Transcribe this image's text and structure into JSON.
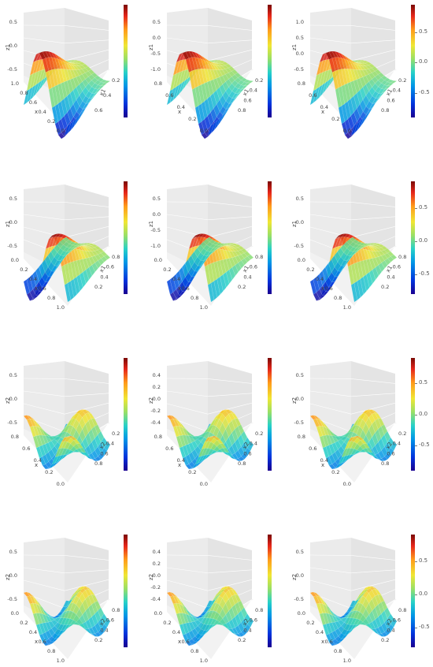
{
  "chart_data": [
    {
      "type": "surface3d",
      "row": 1,
      "col": 1,
      "z_label": "z1",
      "x_label": "x",
      "y_label": "x1",
      "z_ticks": [
        "0.5",
        "0.0",
        "-0.5"
      ],
      "x_ticks": [
        "1.0",
        "0.8",
        "0.6",
        "0.4",
        "0.2",
        "0.0"
      ],
      "y_ticks": [
        "0.2",
        "0.4",
        "0.6"
      ],
      "colorbar_ticks": [],
      "colorbar_range": [
        -1,
        1
      ]
    },
    {
      "type": "surface3d",
      "row": 1,
      "col": 2,
      "z_label": "z1",
      "x_label": "x",
      "y_label": "x1",
      "z_ticks": [
        "0.5",
        "0.0",
        "-0.5",
        "-1.0"
      ],
      "x_ticks": [
        "0.8",
        "0.6",
        "0.4",
        "0.2",
        "0.0"
      ],
      "y_ticks": [
        "0.2",
        "0.4",
        "0.6",
        "0.8"
      ],
      "colorbar_ticks": [],
      "colorbar_range": [
        -1,
        1
      ]
    },
    {
      "type": "surface3d",
      "row": 1,
      "col": 3,
      "z_label": "z1",
      "x_label": "x",
      "y_label": "x1",
      "z_ticks": [
        "1.0",
        "0.5",
        "0.0",
        "-0.5"
      ],
      "x_ticks": [
        "0.8",
        "0.6",
        "0.4",
        "0.2",
        "0.0"
      ],
      "y_ticks": [
        "0.2",
        "0.4",
        "0.6",
        "0.8"
      ],
      "colorbar_ticks": [
        "0.5",
        "0.0",
        "-0.5"
      ],
      "colorbar_range": [
        -0.9,
        0.95
      ]
    },
    {
      "type": "surface3d",
      "row": 2,
      "col": 1,
      "z_label": "z1",
      "x_label": "x",
      "y_label": "x1",
      "z_ticks": [
        "0.5",
        "0.0",
        "-0.5"
      ],
      "x_ticks": [
        "0.0",
        "0.2",
        "0.4",
        "0.6",
        "0.8",
        "1.0"
      ],
      "y_ticks": [
        "0.8",
        "0.6",
        "0.4",
        "0.2"
      ],
      "colorbar_ticks": [],
      "colorbar_range": [
        -0.9,
        0.9
      ]
    },
    {
      "type": "surface3d",
      "row": 2,
      "col": 2,
      "z_label": "z1",
      "x_label": "x",
      "y_label": "x1",
      "z_ticks": [
        "0.5",
        "0.0",
        "-0.5",
        "-1.0"
      ],
      "x_ticks": [
        "0.0",
        "0.2",
        "0.4",
        "0.6",
        "0.8",
        "1.0"
      ],
      "y_ticks": [
        "0.8",
        "0.6",
        "0.4",
        "0.2"
      ],
      "colorbar_ticks": [],
      "colorbar_range": [
        -1,
        1
      ]
    },
    {
      "type": "surface3d",
      "row": 2,
      "col": 3,
      "z_label": "z1",
      "x_label": "x",
      "y_label": "x1",
      "z_ticks": [
        "0.5",
        "0.0",
        "-0.5"
      ],
      "x_ticks": [
        "0.0",
        "0.2",
        "0.4",
        "0.6",
        "0.8",
        "1.0"
      ],
      "y_ticks": [
        "0.8",
        "0.6",
        "0.4",
        "0.2"
      ],
      "colorbar_ticks": [
        "0.5",
        "0.0",
        "-0.5"
      ],
      "colorbar_range": [
        -0.8,
        0.9
      ]
    },
    {
      "type": "surface3d",
      "row": 3,
      "col": 1,
      "z_label": "z2",
      "x_label": "x",
      "y_label": "x2",
      "z_ticks": [
        "0.5",
        "0.0",
        "-0.5"
      ],
      "x_ticks": [
        "0.8",
        "0.6",
        "0.4",
        "0.2",
        "0.0"
      ],
      "y_ticks": [
        "0.2",
        "0.4",
        "0.6",
        "0.8"
      ],
      "colorbar_ticks": [],
      "colorbar_range": [
        -0.9,
        0.9
      ]
    },
    {
      "type": "surface3d",
      "row": 3,
      "col": 2,
      "z_label": "z2",
      "x_label": "x",
      "y_label": "x2",
      "z_ticks": [
        "0.4",
        "0.2",
        "0.0",
        "-0.2",
        "-0.4"
      ],
      "x_ticks": [
        "0.8",
        "0.6",
        "0.4",
        "0.2",
        "0.0"
      ],
      "y_ticks": [
        "0.2",
        "0.4",
        "0.6",
        "0.8"
      ],
      "colorbar_ticks": [],
      "colorbar_range": [
        -0.6,
        0.6
      ]
    },
    {
      "type": "surface3d",
      "row": 3,
      "col": 3,
      "z_label": "z2",
      "x_label": "x",
      "y_label": "x2",
      "z_ticks": [
        "0.5",
        "0.0",
        "-0.5"
      ],
      "x_ticks": [
        "0.8",
        "0.6",
        "0.4",
        "0.2",
        "0.0"
      ],
      "y_ticks": [
        "0.2",
        "0.4",
        "0.6",
        "0.8"
      ],
      "colorbar_ticks": [
        "0.5",
        "0.0",
        "-0.5"
      ],
      "colorbar_range": [
        -0.9,
        0.9
      ]
    },
    {
      "type": "surface3d",
      "row": 4,
      "col": 1,
      "z_label": "z2",
      "x_label": "x",
      "y_label": "x2",
      "z_ticks": [
        "0.5",
        "0.0",
        "-0.5"
      ],
      "x_ticks": [
        "0.0",
        "0.2",
        "0.4",
        "0.6",
        "0.8",
        "1.0"
      ],
      "y_ticks": [
        "0.8",
        "0.6",
        "0.4",
        "0.2"
      ],
      "colorbar_ticks": [],
      "colorbar_range": [
        -0.9,
        0.9
      ]
    },
    {
      "type": "surface3d",
      "row": 4,
      "col": 2,
      "z_label": "z2",
      "x_label": "x",
      "y_label": "x2",
      "z_ticks": [
        "0.4",
        "0.2",
        "0.0",
        "-0.2",
        "-0.4"
      ],
      "x_ticks": [
        "0.0",
        "0.2",
        "0.4",
        "0.6",
        "0.8",
        "1.0"
      ],
      "y_ticks": [
        "0.8",
        "0.6",
        "0.4",
        "0.2"
      ],
      "colorbar_ticks": [],
      "colorbar_range": [
        -0.6,
        0.6
      ]
    },
    {
      "type": "surface3d",
      "row": 4,
      "col": 3,
      "z_label": "z2",
      "x_label": "x",
      "y_label": "x2",
      "z_ticks": [
        "0.5",
        "0.0",
        "-0.5"
      ],
      "x_ticks": [
        "0.0",
        "0.2",
        "0.4",
        "0.6",
        "0.8",
        "1.0"
      ],
      "y_ticks": [
        "0.8",
        "0.6",
        "0.4",
        "0.2"
      ],
      "colorbar_ticks": [
        "0.5",
        "0.0",
        "-0.5"
      ],
      "colorbar_range": [
        -0.8,
        0.9
      ]
    }
  ],
  "colors": {
    "pane": "#ebebeb",
    "grid": "#ffffff",
    "axis_text": "#444444",
    "scale": [
      "#1a0090",
      "#0033dd",
      "#0096e6",
      "#27d1c8",
      "#99e066",
      "#f0e633",
      "#ff9a1a",
      "#e6251a",
      "#7a0a05"
    ]
  }
}
